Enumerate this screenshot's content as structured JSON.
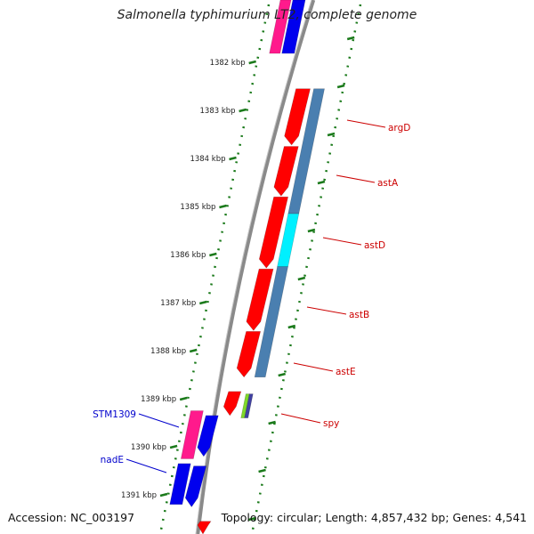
{
  "title": "Salmonella typhimurium LT2, complete genome",
  "footer": {
    "accession": "Accession: NC_003197",
    "summary": "Topology: circular; Length: 4,857,432 bp; Genes: 4,541"
  },
  "colors": {
    "backbone": "#8a8a8a",
    "tick": "#1b7a1b",
    "gene_red": "#ff0000",
    "gene_blue": "#0000ee",
    "gene_pink": "#ff1a8c",
    "steel": "#4a7fb0",
    "cyan": "#00f0ff",
    "label_red": "#cc0000",
    "label_blue": "#0000cc"
  },
  "scale": {
    "unit": "kbp",
    "ticks": [
      {
        "kbp": 1382,
        "label": "1382 kbp"
      },
      {
        "kbp": 1383,
        "label": "1383 kbp"
      },
      {
        "kbp": 1384,
        "label": "1384 kbp"
      },
      {
        "kbp": 1385,
        "label": "1385 kbp"
      },
      {
        "kbp": 1386,
        "label": "1386 kbp"
      },
      {
        "kbp": 1387,
        "label": "1387 kbp"
      },
      {
        "kbp": 1388,
        "label": "1388 kbp"
      },
      {
        "kbp": 1389,
        "label": "1389 kbp"
      },
      {
        "kbp": 1390,
        "label": "1390 kbp"
      },
      {
        "kbp": 1391,
        "label": "1391 kbp"
      }
    ]
  },
  "genes": [
    {
      "name": "argD",
      "start": 1382.55,
      "end": 1383.72,
      "strand": "+",
      "color": "#ff0000"
    },
    {
      "name": "astA",
      "start": 1383.75,
      "end": 1384.78,
      "strand": "+",
      "color": "#ff0000"
    },
    {
      "name": "astD",
      "start": 1384.8,
      "end": 1386.28,
      "strand": "+",
      "color": "#ff0000"
    },
    {
      "name": "astB",
      "start": 1386.3,
      "end": 1387.58,
      "strand": "+",
      "color": "#ff0000"
    },
    {
      "name": "astE",
      "start": 1387.6,
      "end": 1388.55,
      "strand": "+",
      "color": "#ff0000"
    },
    {
      "name": "spy",
      "start": 1388.9,
      "end": 1389.3,
      "strand": "+",
      "color": "#ff0000"
    },
    {
      "name": "STM1309",
      "start": 1389.25,
      "end": 1390.2,
      "strand": "+",
      "color": "#ff1a8c"
    },
    {
      "name": "nadE",
      "start": 1390.35,
      "end": 1391.2,
      "strand": "+",
      "color": "#0000ee"
    }
  ],
  "labels": [
    {
      "text": "argD",
      "side": "right",
      "color": "#cc0000"
    },
    {
      "text": "astA",
      "side": "right",
      "color": "#cc0000"
    },
    {
      "text": "astD",
      "side": "right",
      "color": "#cc0000"
    },
    {
      "text": "astB",
      "side": "right",
      "color": "#cc0000"
    },
    {
      "text": "astE",
      "side": "right",
      "color": "#cc0000"
    },
    {
      "text": "spy",
      "side": "right",
      "color": "#cc0000"
    },
    {
      "text": "STM1309",
      "side": "left",
      "color": "#0000cc"
    },
    {
      "text": "nadE",
      "side": "left",
      "color": "#0000cc"
    }
  ]
}
